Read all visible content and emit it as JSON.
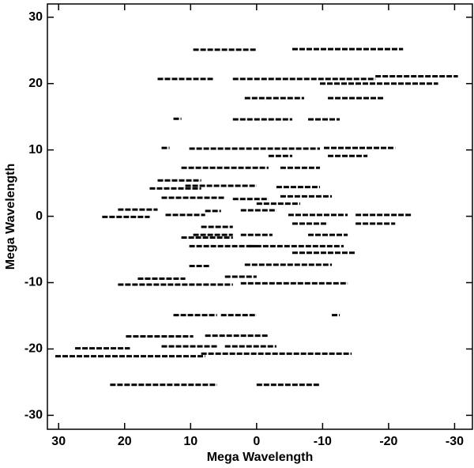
{
  "chart_data": {
    "type": "segment",
    "x_label": "Mega Wavelength",
    "y_label": "Mega Wavelength",
    "xlim": [
      31.7,
      -32.7
    ],
    "ylim": [
      -32.1,
      32
    ],
    "xticks": [
      30,
      20,
      10,
      0,
      -10,
      -20,
      -30
    ],
    "yticks": [
      30,
      20,
      10,
      0,
      -10,
      -20,
      -30
    ],
    "color": "#000000",
    "x_start": [
      9.6,
      -5.4,
      15,
      3.6,
      -18,
      -9.6,
      1.8,
      -10.8,
      12.6,
      3.6,
      -7.8,
      14.4,
      10.2,
      -10.2,
      -1.8,
      -10.8,
      11.4,
      -3.6,
      15,
      16.2,
      10.8,
      -3,
      14.4,
      3.6,
      -3.6,
      0,
      21,
      7.8,
      2.4,
      23.4,
      13.8,
      -4.8,
      -15,
      -15,
      -5.4,
      8.4,
      9.6,
      2.4,
      -7.8,
      11.4,
      10.2,
      1.2,
      -5.4,
      10.2,
      1.8,
      18,
      4.8,
      21,
      2.4,
      12.6,
      5.4,
      -11.4,
      19.8,
      7.8,
      27.5,
      14.4,
      4.8,
      30.5,
      8.4,
      22.2,
      0
    ],
    "x_end": [
      0,
      -22.2,
      6.6,
      -18,
      -30.5,
      -27.5,
      -7.2,
      -19.2,
      11.4,
      -5.4,
      -12.6,
      13.2,
      -9.6,
      -21,
      -5.4,
      -16.8,
      -1.8,
      -9.6,
      8.4,
      8.4,
      0,
      -9.6,
      4.8,
      -1.8,
      -11.4,
      -6.6,
      15,
      5.4,
      -3,
      16.2,
      7.8,
      -13.8,
      -23.4,
      -21,
      -10.8,
      3.6,
      3.6,
      -2.4,
      -13.8,
      3.6,
      0,
      -13.2,
      -15,
      7.2,
      -11.4,
      10.8,
      0,
      3.6,
      -13.8,
      6,
      0,
      -12.6,
      9.6,
      -1.8,
      19.2,
      6,
      -3,
      7.8,
      -14.4,
      6,
      -9.6
    ],
    "y": [
      25.1,
      25.2,
      20.7,
      20.7,
      21.1,
      20,
      17.8,
      17.8,
      14.7,
      14.6,
      14.6,
      10.3,
      10.2,
      10.3,
      9.1,
      9.1,
      7.3,
      7.3,
      5.4,
      4.2,
      4.6,
      4.4,
      2.8,
      2.6,
      3,
      1.9,
      1,
      0.8,
      0.9,
      -0.1,
      0.2,
      0.2,
      0.2,
      -1.1,
      -1.1,
      -1.6,
      -2.8,
      -2.8,
      -2.8,
      -3.2,
      -4.5,
      -4.5,
      -5.5,
      -7.5,
      -7.3,
      -9.4,
      -9.1,
      -10.3,
      -10.1,
      -14.9,
      -14.9,
      -14.9,
      -18.1,
      -18,
      -19.9,
      -19.6,
      -19.6,
      -21.1,
      -20.7,
      -25.4,
      -25.4
    ]
  }
}
